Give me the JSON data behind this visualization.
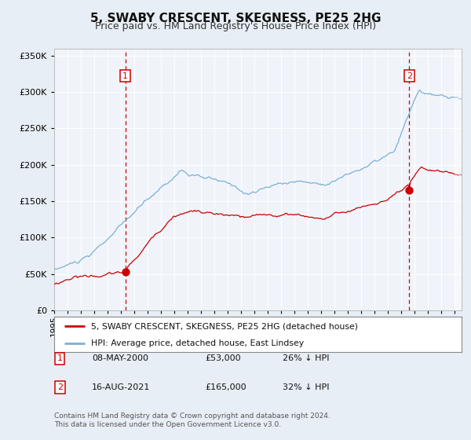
{
  "title": "5, SWABY CRESCENT, SKEGNESS, PE25 2HG",
  "subtitle": "Price paid vs. HM Land Registry's House Price Index (HPI)",
  "legend_line1": "5, SWABY CRESCENT, SKEGNESS, PE25 2HG (detached house)",
  "legend_line2": "HPI: Average price, detached house, East Lindsey",
  "sale1_date": "08-MAY-2000",
  "sale1_price": 53000,
  "sale1_pct": "26% ↓ HPI",
  "sale1_year": 2000.37,
  "sale2_date": "16-AUG-2021",
  "sale2_price": 165000,
  "sale2_pct": "32% ↓ HPI",
  "sale2_year": 2021.62,
  "hpi_color": "#7bafd4",
  "sale_color": "#cc0000",
  "bg_color": "#e8eef5",
  "plot_bg": "#f0f4fa",
  "grid_color": "#ffffff",
  "annotation_box_color": "#cc0000",
  "dashed_line_color": "#cc0000",
  "ylim": [
    0,
    360000
  ],
  "yticks": [
    0,
    50000,
    100000,
    150000,
    200000,
    250000,
    300000,
    350000
  ],
  "xlim_start": 1995.0,
  "xlim_end": 2025.5,
  "footer": "Contains HM Land Registry data © Crown copyright and database right 2024.\nThis data is licensed under the Open Government Licence v3.0."
}
